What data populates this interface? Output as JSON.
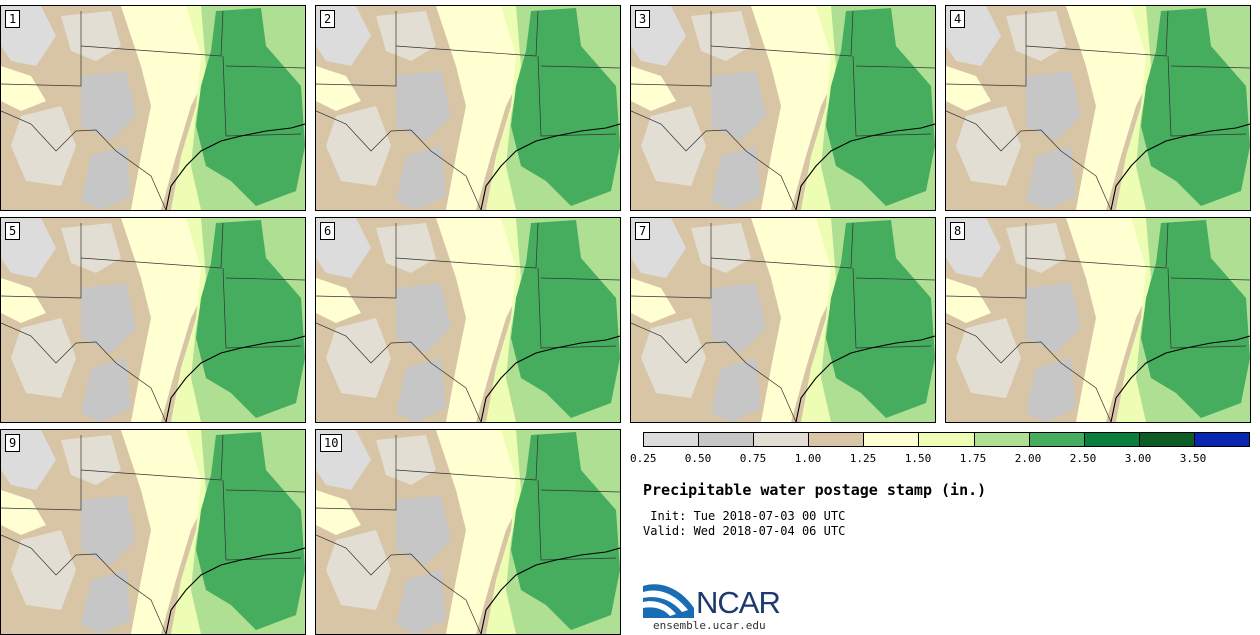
{
  "stamps": [
    {
      "number": "1"
    },
    {
      "number": "2"
    },
    {
      "number": "3"
    },
    {
      "number": "4"
    },
    {
      "number": "5"
    },
    {
      "number": "6"
    },
    {
      "number": "7"
    },
    {
      "number": "8"
    },
    {
      "number": "9"
    },
    {
      "number": "10"
    }
  ],
  "colorbar": {
    "colors": [
      "#dcdcdc",
      "#c6c6c6",
      "#e3ded3",
      "#d8c5a5",
      "#ffffd2",
      "#eefdb4",
      "#aedf92",
      "#47ad5e",
      "#0a7e3d",
      "#0e5c26",
      "#0a27b0"
    ],
    "labels": [
      "0.25",
      "0.50",
      "0.75",
      "1.00",
      "1.25",
      "1.50",
      "1.75",
      "2.00",
      "2.50",
      "3.00",
      "3.50"
    ]
  },
  "title": "Precipitable water postage stamp (in.)",
  "init": " Init: Tue 2018-07-03 00 UTC",
  "valid": "Valid: Wed 2018-07-04 06 UTC",
  "logo": {
    "text": "NCAR",
    "url": "ensemble.ucar.edu"
  }
}
